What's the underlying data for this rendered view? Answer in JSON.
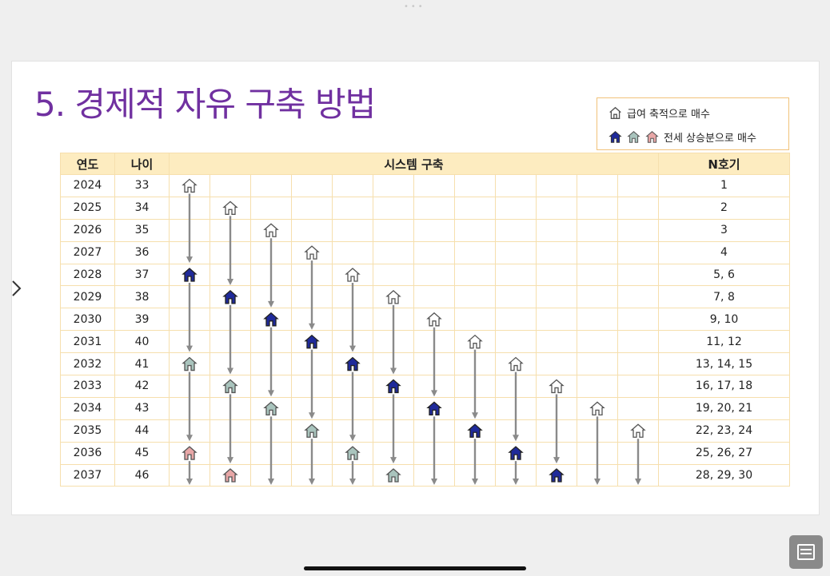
{
  "slide": {
    "title": "5. 경제적 자유 구축 방법",
    "legend": {
      "salary_label": "급여 축적으로 매수",
      "jeonse_label": "전세 상승분으로 매수"
    },
    "headers": {
      "year": "연도",
      "age": "나이",
      "system": "시스템 구축",
      "n": "N호기"
    },
    "rows": [
      {
        "year": "2024",
        "age": "33",
        "n": "1"
      },
      {
        "year": "2025",
        "age": "34",
        "n": "2"
      },
      {
        "year": "2026",
        "age": "35",
        "n": "3"
      },
      {
        "year": "2027",
        "age": "36",
        "n": "4"
      },
      {
        "year": "2028",
        "age": "37",
        "n": "5, 6"
      },
      {
        "year": "2029",
        "age": "38",
        "n": "7, 8"
      },
      {
        "year": "2030",
        "age": "39",
        "n": "9, 10"
      },
      {
        "year": "2031",
        "age": "40",
        "n": "11, 12"
      },
      {
        "year": "2032",
        "age": "41",
        "n": "13, 14, 15"
      },
      {
        "year": "2033",
        "age": "42",
        "n": "16, 17, 18"
      },
      {
        "year": "2034",
        "age": "43",
        "n": "19, 20, 21"
      },
      {
        "year": "2035",
        "age": "44",
        "n": "22, 23, 24"
      },
      {
        "year": "2036",
        "age": "45",
        "n": "25, 26, 27"
      },
      {
        "year": "2037",
        "age": "46",
        "n": "28, 29, 30"
      }
    ],
    "house_colors": {
      "outline": "#ffffff",
      "navy": "#1f2a9a",
      "teal": "#a9c4bd",
      "pink": "#e8a7a7"
    },
    "arrow_color": "#8a8a8a",
    "title_color": "#7030a0"
  },
  "chrome": {
    "nav_icon": "chevron-right-icon",
    "note_icon": "notes-icon"
  }
}
